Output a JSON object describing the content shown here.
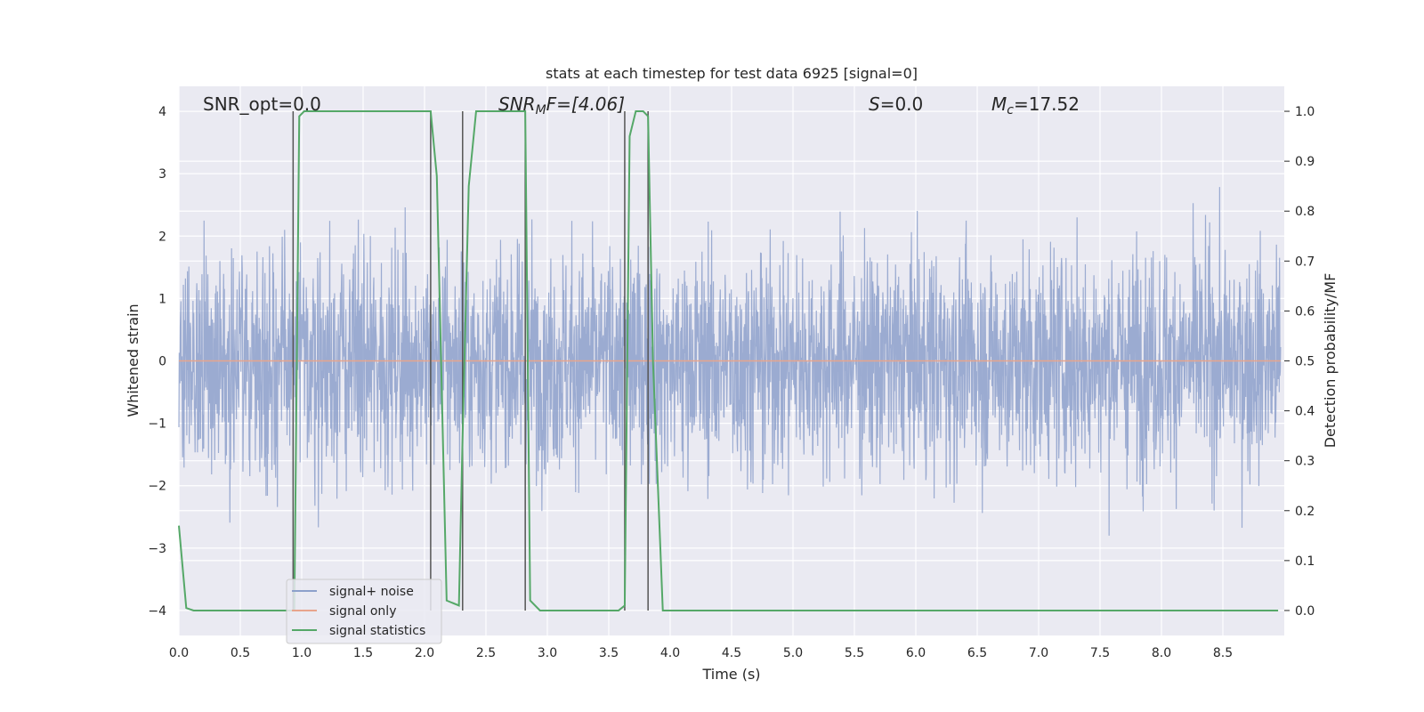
{
  "chart_data": {
    "type": "line",
    "title": "stats at each timestep for test data 6925 [signal=0]",
    "xlabel": "Time (s)",
    "ylabel": "Whitened strain",
    "y2label": "Detection probability/MF",
    "xlim": [
      0.0,
      9.0
    ],
    "ylim": [
      -4.4,
      4.4
    ],
    "y2lim": [
      -0.05,
      1.05
    ],
    "x_ticks": [
      "0.0",
      "0.5",
      "1.0",
      "1.5",
      "2.0",
      "2.5",
      "3.0",
      "3.5",
      "4.0",
      "4.5",
      "5.0",
      "5.5",
      "6.0",
      "6.5",
      "7.0",
      "7.5",
      "8.0",
      "8.5"
    ],
    "y_ticks": [
      "−4",
      "−3",
      "−2",
      "−1",
      "0",
      "1",
      "2",
      "3",
      "4"
    ],
    "y2_ticks": [
      "0.0",
      "0.1",
      "0.2",
      "0.3",
      "0.4",
      "0.5",
      "0.6",
      "0.7",
      "0.8",
      "0.9",
      "1.0"
    ],
    "grid": true,
    "legend_position": "lower-left",
    "annotations": {
      "snr_opt": "SNR_opt=0.0",
      "snr_mf_base": "SNR",
      "snr_mf_sub": "M",
      "snr_mf_rest": "F=[4.06]",
      "s_sym": "S",
      "s_rest": "=0.0",
      "mc_sym": "M",
      "mc_sub": "c",
      "mc_rest": "=17.52"
    },
    "series": [
      {
        "name": "signal+ noise",
        "color": "#8da0cb",
        "description_range": [
          -4.0,
          4.0
        ]
      },
      {
        "name": "signal only",
        "color": "#e8a48c",
        "values_constant": 0.0
      },
      {
        "name": "signal statistics",
        "color": "#55a868",
        "axis": "right",
        "x": [
          0.0,
          0.06,
          0.12,
          0.9,
          0.94,
          0.98,
          1.02,
          1.08,
          2.0,
          2.05,
          2.1,
          2.18,
          2.28,
          2.31,
          2.36,
          2.42,
          2.78,
          2.82,
          2.86,
          2.94,
          3.58,
          3.63,
          3.67,
          3.72,
          3.78,
          3.82,
          3.86,
          3.94,
          8.95
        ],
        "values": [
          0.17,
          0.005,
          0.0,
          0.0,
          0.0,
          0.99,
          1.0,
          1.0,
          1.0,
          1.0,
          0.87,
          0.02,
          0.01,
          0.35,
          0.85,
          1.0,
          1.0,
          1.0,
          0.02,
          0.0,
          0.0,
          0.01,
          0.95,
          1.0,
          1.0,
          0.99,
          0.5,
          0.0,
          0.0
        ]
      }
    ],
    "vertical_lines_x": [
      0.93,
      2.05,
      2.31,
      2.82,
      3.63,
      3.82
    ]
  },
  "colors": {
    "plot_background": "#eaeaf2",
    "grid": "#ffffff",
    "vline": "#555555"
  }
}
